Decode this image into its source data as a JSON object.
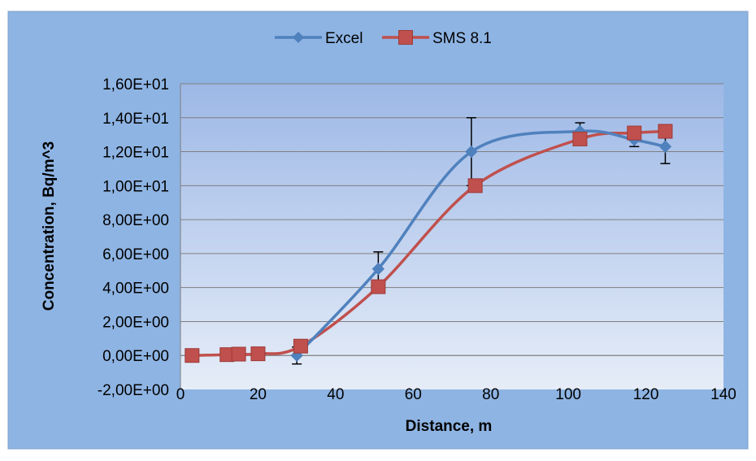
{
  "chart_data": {
    "type": "line",
    "title": "",
    "xlabel": "Distance, m",
    "ylabel": "Concentration, Bq/m^3",
    "xlim": [
      0,
      140
    ],
    "ylim": [
      -2,
      16
    ],
    "x_ticks": [
      0,
      20,
      40,
      60,
      80,
      100,
      120,
      140
    ],
    "x_tick_labels": [
      "0",
      "20",
      "40",
      "60",
      "80",
      "100",
      "120",
      "140"
    ],
    "y_ticks": [
      -2,
      0,
      2,
      4,
      6,
      8,
      10,
      12,
      14,
      16
    ],
    "y_tick_labels": [
      "-2,00E+00",
      "0,00E+00",
      "2,00E+00",
      "4,00E+00",
      "6,00E+00",
      "8,00E+00",
      "1,00E+01",
      "1,20E+01",
      "1,40E+01",
      "1,60E+01"
    ],
    "grid": "horizontal",
    "legend": "top-center",
    "colors": {
      "frame_bg": "#8eb4e3",
      "plot_top": "#9db8e6",
      "plot_bottom": "#e6edf8",
      "excel": "#4f81bd",
      "sms": "#c0504d",
      "grid": "#7f7f7f"
    },
    "series": [
      {
        "name": "Excel",
        "marker": "diamond",
        "x": [
          30,
          51,
          75,
          103,
          117,
          125
        ],
        "y": [
          0.0,
          5.1,
          12.0,
          13.2,
          12.7,
          12.3
        ],
        "error": [
          0.5,
          1.0,
          2.0,
          0.5,
          0.4,
          1.0
        ]
      },
      {
        "name": "SMS 8.1",
        "marker": "square",
        "x": [
          3,
          12,
          15,
          20,
          31,
          51,
          76,
          103,
          117,
          125
        ],
        "y": [
          0.0,
          0.05,
          0.08,
          0.1,
          0.55,
          4.05,
          10.0,
          12.75,
          13.1,
          13.2
        ]
      }
    ]
  }
}
